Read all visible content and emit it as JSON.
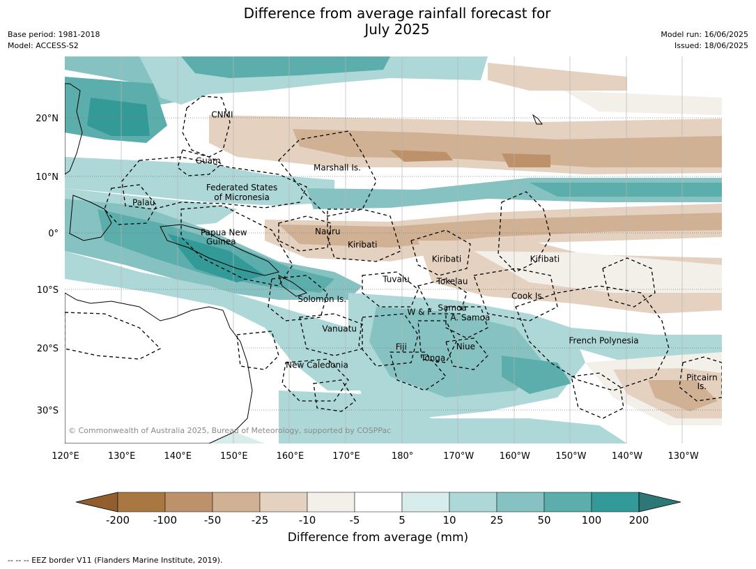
{
  "title": {
    "line1": "Difference from average rainfall forecast for",
    "line2": "July 2025"
  },
  "meta_left": {
    "base_period": "Base period: 1981-2018",
    "model": "Model: ACCESS-S2"
  },
  "meta_right": {
    "model_run": "Model run: 16/06/2025",
    "issued": "Issued: 18/06/2025"
  },
  "copyright": "© Commonwealth of Australia 2025, Bureau of Meteorology, supported by COSPPac",
  "footnote": "--  --  -- EEZ border V11 (Flanders Marine Institute, 2019).",
  "map": {
    "lon_ticks": [
      "120°E",
      "130°E",
      "140°E",
      "150°E",
      "160°E",
      "170°E",
      "180°",
      "170°W",
      "160°W",
      "150°W",
      "140°W",
      "130°W"
    ],
    "lat_ticks": [
      "20°N",
      "10°N",
      "0°",
      "10°S",
      "20°S",
      "30°S"
    ],
    "regions": [
      {
        "name": "CNMI",
        "lon": 147,
        "lat": 20.5
      },
      {
        "name": "Guam",
        "lon": 144.5,
        "lat": 12.5
      },
      {
        "name": "Marshall Is.",
        "lon": 167.5,
        "lat": 11.3
      },
      {
        "name": "Federated States",
        "lon": 150.5,
        "lat": 7.8
      },
      {
        "name": "of Micronesia",
        "lon": 150.5,
        "lat": 6.1
      },
      {
        "name": "Palau",
        "lon": 133,
        "lat": 5.2
      },
      {
        "name": "Papua New",
        "lon": 147.3,
        "lat": 0
      },
      {
        "name": "Guinea",
        "lon": 146.8,
        "lat": -1.6
      },
      {
        "name": "Nauru",
        "lon": 165.8,
        "lat": 0.2
      },
      {
        "name": "Kiribati",
        "lon": 172,
        "lat": -2.1
      },
      {
        "name": "Kiribati",
        "lon": -173,
        "lat": -4.6
      },
      {
        "name": "Kiribati",
        "lon": -155.5,
        "lat": -4.6
      },
      {
        "name": "Tuvalu",
        "lon": 178,
        "lat": -8.1
      },
      {
        "name": "Tokelau",
        "lon": -172,
        "lat": -8.5
      },
      {
        "name": "Cook Is.",
        "lon": -158.5,
        "lat": -11
      },
      {
        "name": "Solomon Is.",
        "lon": 164.8,
        "lat": -11.6
      },
      {
        "name": "Samoa",
        "lon": -172,
        "lat": -13.1
      },
      {
        "name": "W & F",
        "lon": -177.8,
        "lat": -13.8
      },
      {
        "name": "A. Samoa",
        "lon": -168.8,
        "lat": -14.8
      },
      {
        "name": "Vanuatu",
        "lon": 167.9,
        "lat": -16.7
      },
      {
        "name": "French Polynesia",
        "lon": -145,
        "lat": -18.8
      },
      {
        "name": "Fiji",
        "lon": 178.9,
        "lat": -19.9
      },
      {
        "name": "Niue",
        "lon": -169.6,
        "lat": -19.8
      },
      {
        "name": "Tonga",
        "lon": -175.4,
        "lat": -21.8
      },
      {
        "name": "New Caledonia",
        "lon": 163.9,
        "lat": -23
      },
      {
        "name": "Pitcairn",
        "lon": -127.5,
        "lat": -25.2
      },
      {
        "name": "Is.",
        "lon": -127.5,
        "lat": -26.7
      }
    ]
  },
  "colorbar": {
    "title": "Difference from average (mm)",
    "ticks": [
      "-200",
      "-100",
      "-50",
      "-25",
      "-10",
      "-5",
      "5",
      "10",
      "25",
      "50",
      "100",
      "200"
    ],
    "colors": [
      "#a97842",
      "#bd926a",
      "#d0b193",
      "#e4d1c0",
      "#f3efe9",
      "#ffffff",
      "#d8eceb",
      "#add8d7",
      "#86c2c1",
      "#5baeac",
      "#349a97"
    ],
    "extend_low": "#925e2e",
    "extend_high": "#2d7877"
  }
}
